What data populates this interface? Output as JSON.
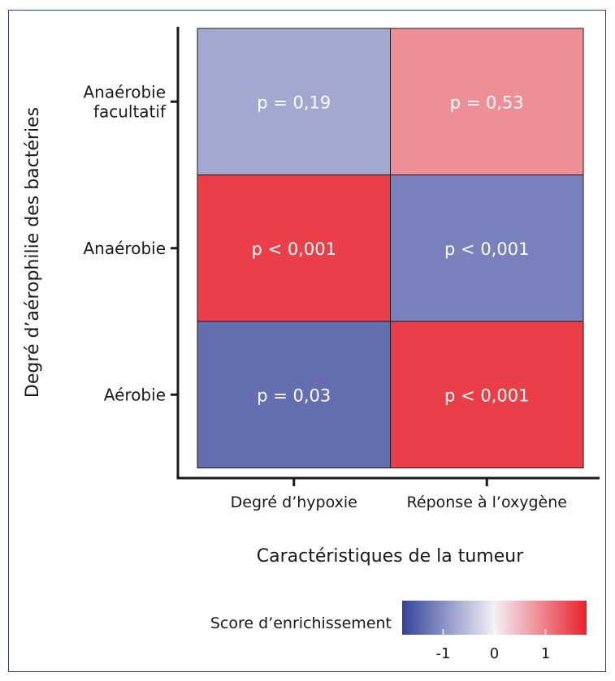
{
  "chart_data": {
    "type": "heatmap",
    "xlabel": "Caractéristiques de la tumeur",
    "ylabel": "Degré d’aérophilie des bactéries",
    "x_categories": [
      "Degré d’hypoxie",
      "Réponse à l’oxygène"
    ],
    "y_categories": [
      [
        "Anaérobie",
        "facultatif"
      ],
      [
        "Anaérobie"
      ],
      [
        "Aérobie"
      ]
    ],
    "cells": [
      [
        {
          "label": "p = 0,19",
          "score": -0.75
        },
        {
          "label": "p = 0,53",
          "score": 0.85
        }
      ],
      [
        {
          "label": "p < 0,001",
          "score": 1.55
        },
        {
          "label": "p < 0,001",
          "score": -1.15
        }
      ],
      [
        {
          "label": "p = 0,03",
          "score": -1.35
        },
        {
          "label": "p < 0,001",
          "score": 1.55
        }
      ]
    ],
    "colorbar": {
      "title": "Score d’enrichissement",
      "range": [
        -1.8,
        1.8
      ],
      "ticks": [
        -1,
        0,
        1
      ],
      "colors": [
        "#34439a",
        "#f3f0f7",
        "#e9222d"
      ]
    }
  }
}
